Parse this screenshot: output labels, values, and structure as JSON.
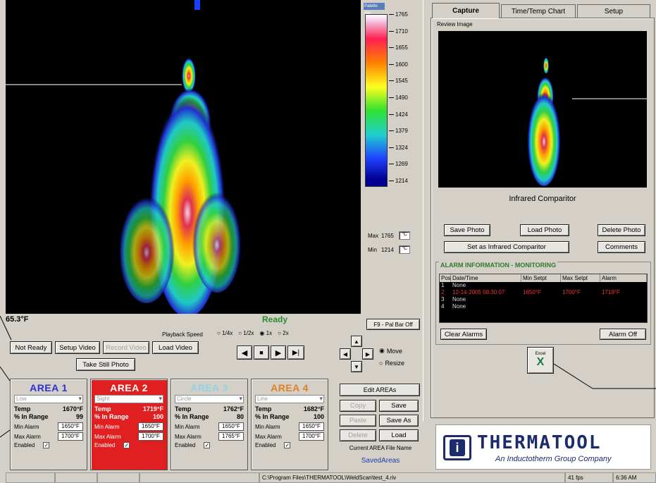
{
  "palette": {
    "title": "Palette Bar",
    "ticks": [
      "1765",
      "1710",
      "1655",
      "1600",
      "1545",
      "1490",
      "1424",
      "1379",
      "1324",
      "1269",
      "1214"
    ],
    "max_label": "Max",
    "max_value": "1765",
    "min_label": "Min",
    "min_value": "1214",
    "unit": "°C"
  },
  "video": {
    "temp_readout": "65.3°F",
    "state": "Ready",
    "pal_bar_button": "F9 - Pal Bar Off"
  },
  "controls": {
    "not_ready": "Not Ready",
    "setup_video": "Setup Video",
    "record_video": "Record Video",
    "load_video": "Load Video",
    "take_still": "Take Still Photo",
    "playback_label": "Playback Speed",
    "speeds": [
      "1/4x",
      "1/2x",
      "1x",
      "2x"
    ],
    "selected_speed": "1x"
  },
  "areas": [
    {
      "title": "AREA 1",
      "mode": "Low",
      "temp_label": "Temp",
      "temp": "1670°F",
      "range_label": "% In Range",
      "range": "99",
      "min_alarm_label": "Min Alarm",
      "min_alarm": "1650°F",
      "max_alarm_label": "Max Alarm",
      "max_alarm": "1700°F",
      "enabled_label": "Enabled",
      "color": "#2b2fd8"
    },
    {
      "title": "AREA 2",
      "mode": "Sight",
      "temp_label": "Temp",
      "temp": "1719°F",
      "range_label": "% In Range",
      "range": "100",
      "min_alarm_label": "Min Alarm",
      "min_alarm": "1650°F",
      "max_alarm_label": "Max Alarm",
      "max_alarm": "1700°F",
      "enabled_label": "Enabled",
      "color": "#ffffff"
    },
    {
      "title": "AREA 3",
      "mode": "Circle",
      "temp_label": "Temp",
      "temp": "1762°F",
      "range_label": "% In Range",
      "range": "80",
      "min_alarm_label": "Min Alarm",
      "min_alarm": "1650°F",
      "max_alarm_label": "Max Alarm",
      "max_alarm": "1765°F",
      "enabled_label": "Enabled",
      "color": "#8fd3e8"
    },
    {
      "title": "AREA 4",
      "mode": "Line",
      "temp_label": "Temp",
      "temp": "1682°F",
      "range_label": "% In Range",
      "range": "100",
      "min_alarm_label": "Min Alarm",
      "min_alarm": "1650°F",
      "max_alarm_label": "Max Alarm",
      "max_alarm": "1700°F",
      "enabled_label": "Enabled",
      "color": "#e08020"
    }
  ],
  "area_edit": {
    "move": "Move",
    "resize": "Resize",
    "edit_areas": "Edit AREAs",
    "copy": "Copy",
    "save": "Save",
    "paste": "Paste",
    "save_as": "Save As",
    "delete": "Delete",
    "load": "Load",
    "file_name_label": "Current AREA File Name",
    "file_name": "SavedAreas"
  },
  "tabs": [
    "Capture",
    "Time/Temp Chart",
    "Setup"
  ],
  "capture": {
    "review_label": "Review Image",
    "comparitor_label": "Infrared Comparitor",
    "save_photo": "Save Photo",
    "load_photo": "Load Photo",
    "delete_photo": "Delete Photo",
    "set_comparitor": "Set as Infrared Comparitor",
    "comments": "Comments"
  },
  "alarm": {
    "title": "ALARM INFORMATION - MONITORING",
    "columns": [
      "Pos",
      "Date/Time",
      "Min Setpt",
      "Max Setpt",
      "Alarm"
    ],
    "rows": [
      {
        "pos": "1",
        "datetime": "None",
        "min": "",
        "max": "",
        "alarm": "",
        "highlight": false
      },
      {
        "pos": "2",
        "datetime": "12-14-2005 08:30:07",
        "min": "1650°F",
        "max": "1700°F",
        "alarm": "1719°F",
        "highlight": true
      },
      {
        "pos": "3",
        "datetime": "None",
        "min": "",
        "max": "",
        "alarm": "",
        "highlight": false
      },
      {
        "pos": "4",
        "datetime": "None",
        "min": "",
        "max": "",
        "alarm": "",
        "highlight": false
      }
    ],
    "clear_button": "Clear Alarms",
    "alarm_off_button": "Alarm Off"
  },
  "excel": {
    "label": "Excel"
  },
  "logo": {
    "name": "THERMATOOL",
    "tagline": "An Inductotherm Group Company"
  },
  "statusbar": {
    "path": "C:\\Program Files\\THERMATOOL\\WeldScan\\test_4.riv",
    "fps": "41 fps",
    "time": "6:36 AM"
  }
}
